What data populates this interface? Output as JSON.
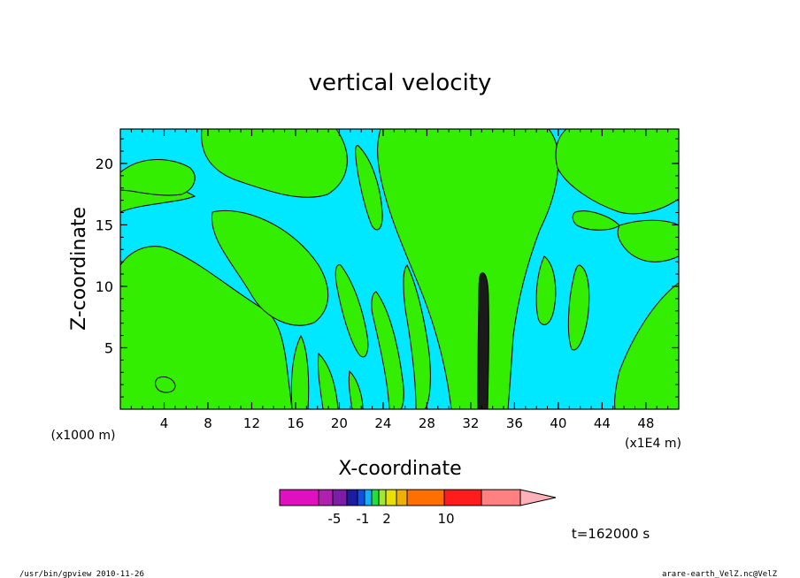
{
  "chart_data": {
    "type": "heatmap",
    "title": "vertical velocity",
    "xlabel": "X-coordinate",
    "ylabel": "Z-coordinate",
    "x_unit": "(x1E4 m)",
    "y_unit": "(x1000 m)",
    "x_ticks": [
      4,
      8,
      12,
      16,
      20,
      24,
      28,
      32,
      36,
      40,
      44,
      48
    ],
    "y_ticks": [
      5,
      10,
      15,
      20
    ],
    "xlim": [
      0,
      51
    ],
    "ylim": [
      0,
      22.8
    ],
    "colorbar": {
      "colors": [
        "#e010c0",
        "#b020b0",
        "#7c1ca8",
        "#1c1ca0",
        "#1050e0",
        "#10b0ff",
        "#20e040",
        "#a0e830",
        "#e8e000",
        "#f0b000",
        "#ff7000",
        "#ff1c1c",
        "#ff8080"
      ],
      "extension_color": "#ffb0b8",
      "labels": [
        "-5",
        "-1",
        "2",
        "10"
      ]
    },
    "regions": {
      "positive_color": "#33ee00",
      "negative_color": "#00e8ff",
      "strong_color": "#1a1a1a"
    },
    "time_label": "t=162000 s"
  },
  "footer": {
    "left": "/usr/bin/gpview   2010-11-26",
    "right": "arare-earth_VelZ.nc@VelZ"
  }
}
